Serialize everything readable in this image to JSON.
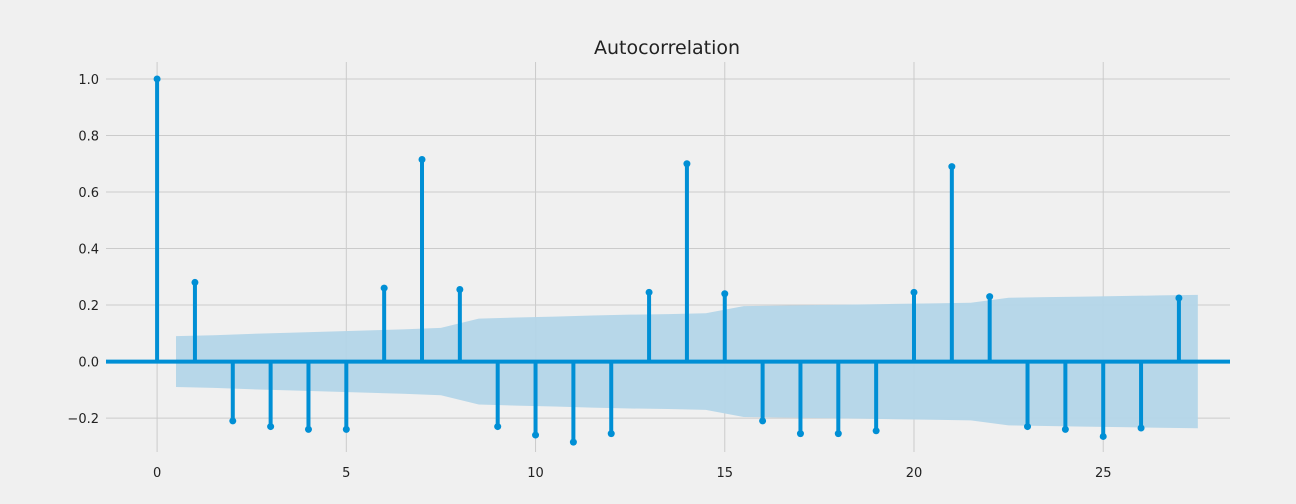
{
  "chart_data": {
    "type": "stem",
    "title": "Autocorrelation",
    "xlabel": "",
    "ylabel": "",
    "xlim": [
      -1.35,
      28.35
    ],
    "ylim": [
      -0.32,
      1.06
    ],
    "x_ticks": [
      0,
      5,
      10,
      15,
      20,
      25
    ],
    "y_ticks": [
      -0.2,
      0.0,
      0.2,
      0.4,
      0.6,
      0.8,
      1.0
    ],
    "y_tick_labels": [
      "−0.2",
      "0.0",
      "0.2",
      "0.4",
      "0.6",
      "0.8",
      "1.0"
    ],
    "grid": true,
    "lags": [
      0,
      1,
      2,
      3,
      4,
      5,
      6,
      7,
      8,
      9,
      10,
      11,
      12,
      13,
      14,
      15,
      16,
      17,
      18,
      19,
      20,
      21,
      22,
      23,
      24,
      25,
      26,
      27
    ],
    "values": [
      1.0,
      0.28,
      -0.21,
      -0.23,
      -0.24,
      -0.24,
      0.26,
      0.715,
      0.255,
      -0.23,
      -0.26,
      -0.285,
      -0.255,
      0.245,
      0.7,
      0.24,
      -0.21,
      -0.255,
      -0.255,
      -0.245,
      0.245,
      0.69,
      0.23,
      -0.23,
      -0.24,
      -0.265,
      -0.235,
      0.225
    ],
    "confidence_band": {
      "x": [
        0.5,
        1.5,
        2.5,
        3.5,
        4.5,
        5.5,
        6.5,
        7.5,
        8.5,
        9.5,
        10.5,
        11.5,
        12.5,
        13.5,
        14.5,
        15.5,
        16.5,
        17.5,
        18.5,
        19.5,
        20.5,
        21.5,
        22.5,
        23.5,
        24.5,
        25.5,
        26.5,
        27.5
      ],
      "upper": [
        0.09,
        0.093,
        0.098,
        0.102,
        0.106,
        0.11,
        0.114,
        0.119,
        0.152,
        0.156,
        0.159,
        0.163,
        0.166,
        0.168,
        0.171,
        0.196,
        0.198,
        0.2,
        0.202,
        0.204,
        0.206,
        0.208,
        0.226,
        0.228,
        0.23,
        0.232,
        0.234,
        0.236
      ]
    },
    "colors": {
      "stem": "#008fd5",
      "band": "#b3d5e8",
      "zero_line": "#008fd5",
      "grid": "#cbcbcb",
      "background": "#f0f0f0"
    }
  }
}
